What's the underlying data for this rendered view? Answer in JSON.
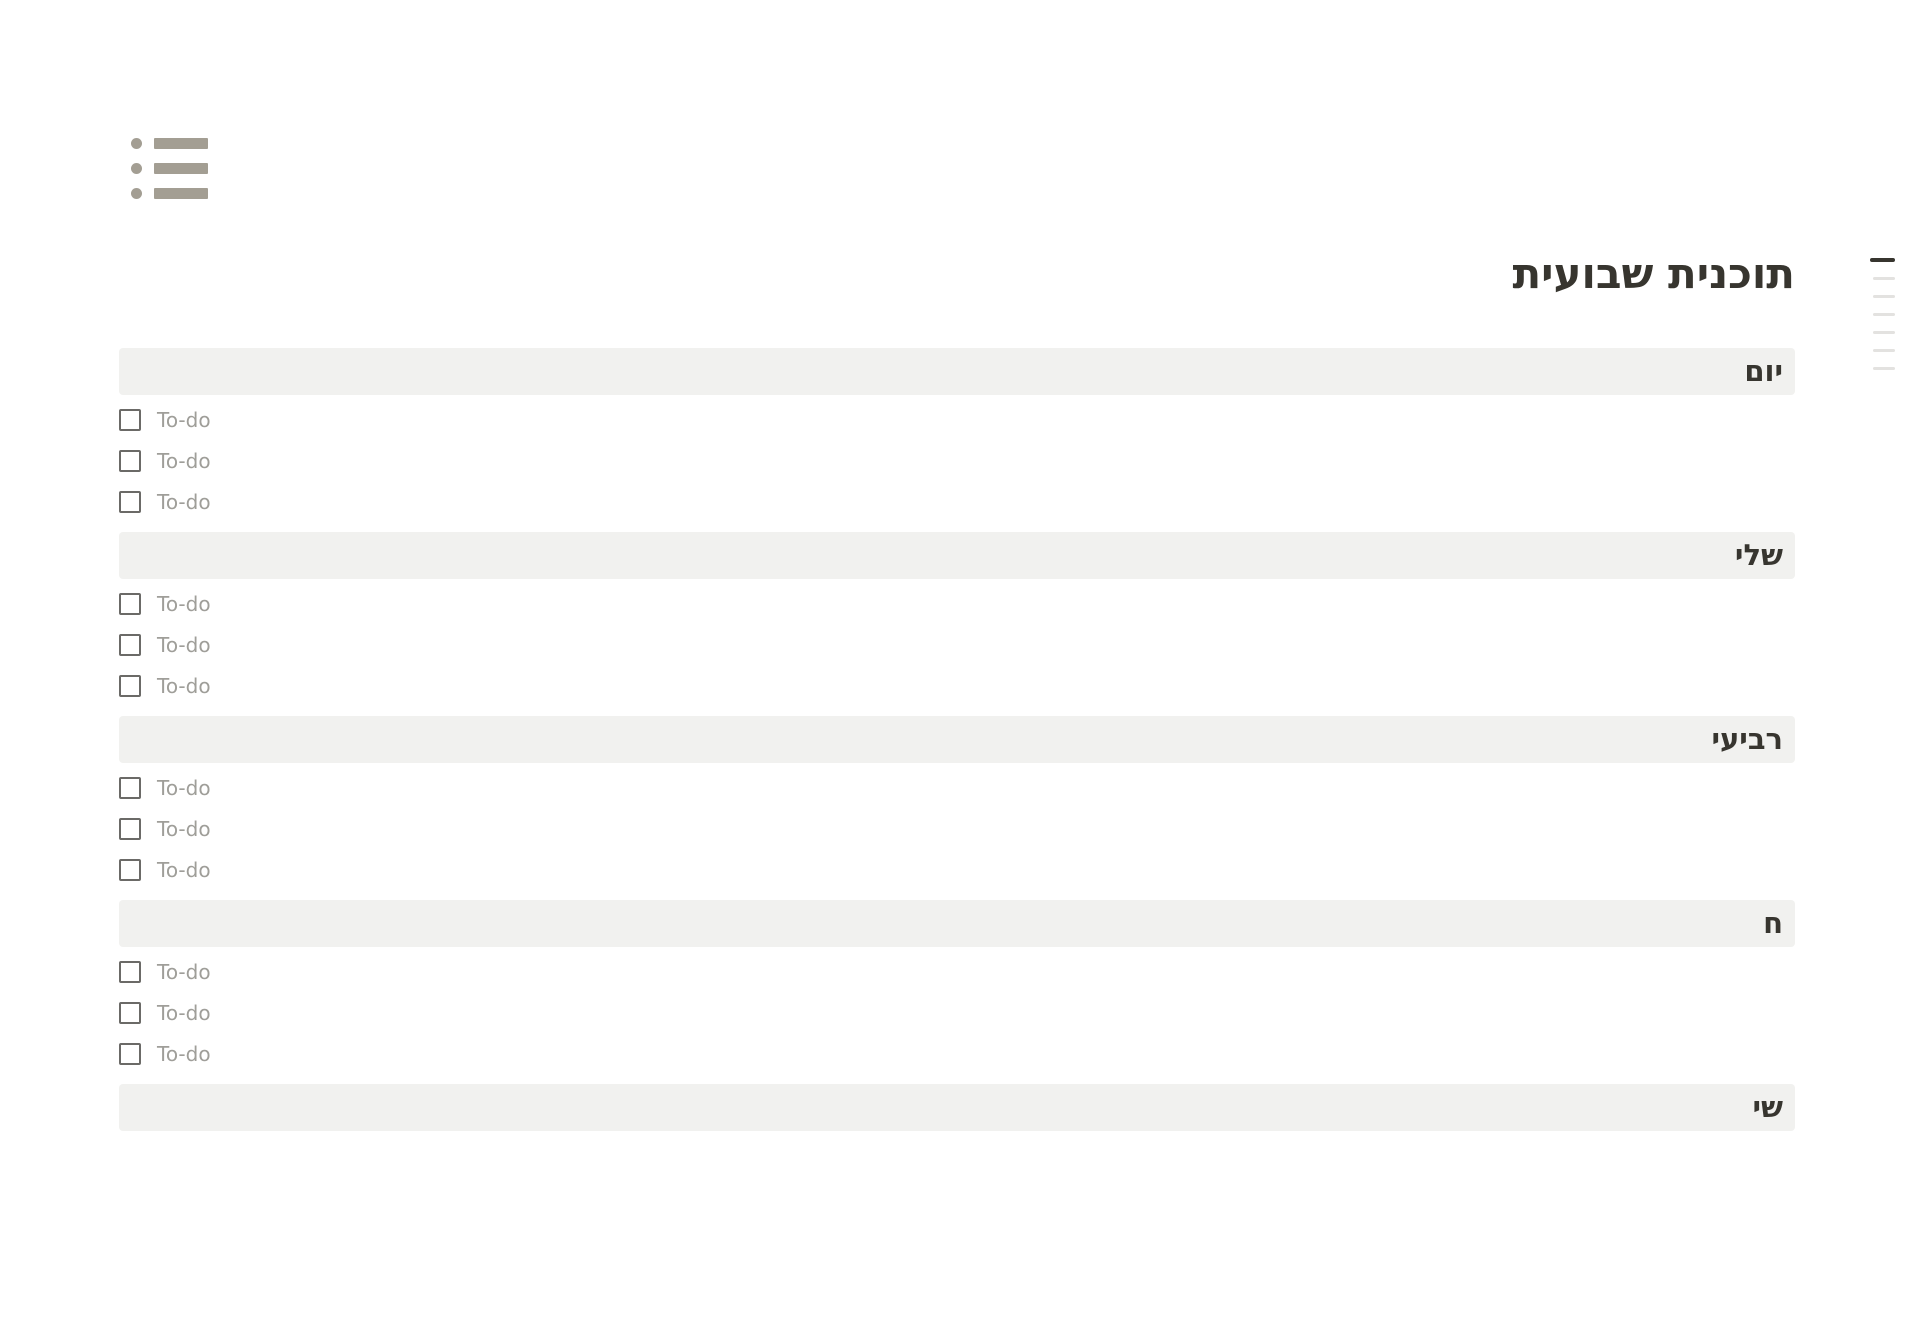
{
  "page": {
    "icon": "bulleted-list",
    "title": "תוכנית שבועית"
  },
  "sections": [
    {
      "header": "יום",
      "todos": [
        {
          "label": "To-do",
          "checked": false
        },
        {
          "label": "To-do",
          "checked": false
        },
        {
          "label": "To-do",
          "checked": false
        }
      ]
    },
    {
      "header": "שלי",
      "todos": [
        {
          "label": "To-do",
          "checked": false
        },
        {
          "label": "To-do",
          "checked": false
        },
        {
          "label": "To-do",
          "checked": false
        }
      ]
    },
    {
      "header": "רביעי",
      "todos": [
        {
          "label": "To-do",
          "checked": false
        },
        {
          "label": "To-do",
          "checked": false
        },
        {
          "label": "To-do",
          "checked": false
        }
      ]
    },
    {
      "header": "ח",
      "todos": [
        {
          "label": "To-do",
          "checked": false
        },
        {
          "label": "To-do",
          "checked": false
        },
        {
          "label": "To-do",
          "checked": false
        }
      ]
    },
    {
      "header": "שי",
      "todos": []
    }
  ],
  "toc": {
    "lines": 7,
    "active_index": 0
  },
  "colors": {
    "text": "#37352f",
    "header_background": "#f1f1ef",
    "todo_placeholder": "#9f9e99",
    "checkbox_border": "#6b6a67",
    "icon": "#a39e93",
    "toc_inactive": "#e3e2e0"
  }
}
